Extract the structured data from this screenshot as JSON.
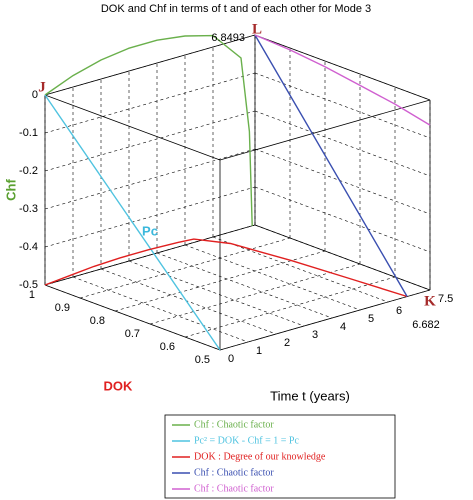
{
  "chart_data": {
    "type": "line3d",
    "title": "DOK and Chf in terms of t and of each other for Mode 3",
    "t_label": "Time t (years)",
    "dok_label": "DOK",
    "chf_label": "Chf",
    "tlim": [
      0,
      7.5
    ],
    "doklim": [
      0.5,
      1
    ],
    "chflim": [
      -0.5,
      0
    ],
    "tticks": [
      0,
      1,
      2,
      3,
      4,
      5,
      6,
      7.5
    ],
    "dokticks": [
      1,
      0.9,
      0.8,
      0.7,
      0.6,
      0.5
    ],
    "chfticks": [
      0,
      -0.1,
      -0.2,
      -0.3,
      -0.4,
      -0.5
    ],
    "grid": true,
    "annotations": [
      "J",
      "L",
      "K",
      "Pc",
      "6.8493",
      "6.682"
    ],
    "series": [
      {
        "name": "Chf : Chaotic factor",
        "color": "#6ab04c",
        "t": [
          0,
          1,
          2,
          3,
          4,
          5,
          6,
          7,
          7.3,
          7.4
        ],
        "dok": [
          1,
          1,
          1,
          1,
          1,
          1,
          1,
          1,
          1,
          1
        ],
        "chf": [
          0,
          0.03,
          0.05,
          0.06,
          0.06,
          0.05,
          0.03,
          -0.05,
          -0.25,
          -0.5
        ]
      },
      {
        "name": "Pc² = DOK - Chf = 1 = Pc",
        "color": "#4fc3e0",
        "t": [
          0,
          0
        ],
        "dok": [
          1,
          0.5
        ],
        "chf": [
          0,
          -0.5
        ]
      },
      {
        "name": "DOK : Degree of our knowledge",
        "color": "#e02020",
        "t": [
          0,
          1,
          2,
          3,
          4,
          5,
          5.5,
          6,
          6.3,
          6.5,
          6.682
        ],
        "dok": [
          1,
          1.01,
          1.02,
          1.025,
          1.025,
          1.02,
          1.015,
          0.95,
          0.8,
          0.65,
          0.5
        ],
        "chf": [
          -0.5,
          -0.5,
          -0.5,
          -0.5,
          -0.5,
          -0.5,
          -0.5,
          -0.5,
          -0.5,
          -0.5,
          -0.5
        ]
      },
      {
        "name": "Chf : Chaotic factor",
        "color": "#3a4fb0",
        "t": [
          7.5,
          6.682
        ],
        "dok": [
          1,
          0.5
        ],
        "chf": [
          0,
          -0.5
        ]
      },
      {
        "name": "Chf : Chaotic factor",
        "color": "#d060d0",
        "t": [
          7.5,
          7.5,
          7.5,
          7.5,
          7.5,
          7.5
        ],
        "dok": [
          1,
          0.9,
          0.8,
          0.7,
          0.6,
          0.5
        ],
        "chf": [
          0,
          -0.005,
          -0.015,
          -0.03,
          -0.045,
          -0.066
        ]
      }
    ]
  }
}
